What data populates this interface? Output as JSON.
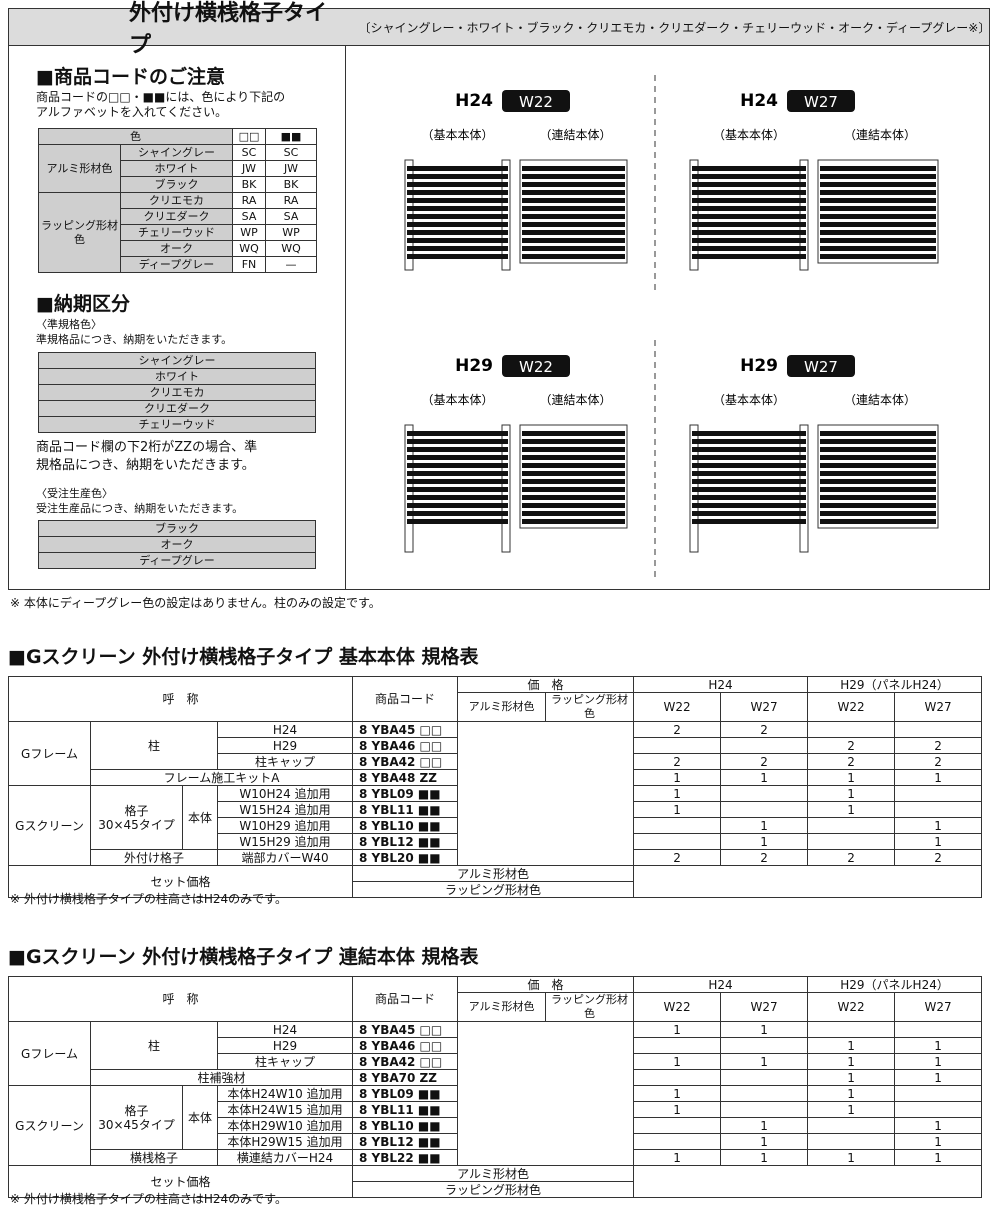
{
  "header": {
    "title": "外付け横桟格子タイプ",
    "subtitle": "〔シャイングレー・ホワイト・ブラック・クリエモカ・クリエダーク・チェリーウッド・オーク・ディープグレー※〕"
  },
  "code_note": {
    "title": "■商品コードのご注意",
    "lines": [
      "商品コードの□□・■■には、色により下記の",
      "アルファベットを入れてください。"
    ],
    "table": {
      "header": [
        "色",
        "□□",
        "■■"
      ],
      "groups": [
        {
          "name": "アルミ形材色",
          "rows": [
            [
              "シャイングレー",
              "SC",
              "SC"
            ],
            [
              "ホワイト",
              "JW",
              "JW"
            ],
            [
              "ブラック",
              "BK",
              "BK"
            ]
          ]
        },
        {
          "name": "ラッピング形材色",
          "rows": [
            [
              "クリエモカ",
              "RA",
              "RA"
            ],
            [
              "クリエダーク",
              "SA",
              "SA"
            ],
            [
              "チェリーウッド",
              "WP",
              "WP"
            ],
            [
              "オーク",
              "WQ",
              "WQ"
            ],
            [
              "ディープグレー",
              "FN",
              "—"
            ]
          ]
        }
      ]
    }
  },
  "delivery": {
    "title": "■納期区分",
    "standard": {
      "label": "〈準規格色〉",
      "text": "準規格品につき、納期をいただきます。",
      "colors": [
        "シャイングレー",
        "ホワイト",
        "クリエモカ",
        "クリエダーク",
        "チェリーウッド"
      ],
      "note": [
        "商品コード欄の下2桁がZZの場合、準",
        "規格品につき、納期をいただきます。"
      ]
    },
    "order": {
      "label": "〈受注生産色〉",
      "text": "受注生産品につき、納期をいただきます。",
      "colors": [
        "ブラック",
        "オーク",
        "ディープグレー"
      ]
    }
  },
  "diagrams": [
    {
      "height": "H24",
      "width": "W22",
      "parts": [
        "（基本本体）",
        "（連結本体）"
      ]
    },
    {
      "height": "H24",
      "width": "W27",
      "parts": [
        "（基本本体）",
        "（連結本体）"
      ]
    },
    {
      "height": "H29",
      "width": "W22",
      "parts": [
        "（基本本体）",
        "（連結本体）"
      ]
    },
    {
      "height": "H29",
      "width": "W27",
      "parts": [
        "（基本本体）",
        "（連結本体）"
      ]
    }
  ],
  "footnote": "※ 本体にディープグレー色の設定はありません。柱のみの設定です。",
  "spec_tables": [
    {
      "title": "■Gスクリーン 外付け横桟格子タイプ 基本本体 規格表",
      "header": {
        "name": "呼　称",
        "code": "商品コード",
        "price": "価　格",
        "price_cols": [
          "アルミ形材色",
          "ラッピング形材色"
        ],
        "groups": [
          "H24",
          "H29（パネルH24）"
        ],
        "widths": [
          "W22",
          "W27",
          "W22",
          "W27"
        ]
      },
      "rows": [
        {
          "names": [
            "Gフレーム",
            "柱",
            "H24"
          ],
          "code": "8 YBA45 □□",
          "qty": [
            2,
            2,
            null,
            null
          ]
        },
        {
          "names": [
            "H29"
          ],
          "code": "8 YBA46 □□",
          "qty": [
            null,
            null,
            2,
            2
          ]
        },
        {
          "names": [
            "柱キャップ"
          ],
          "code": "8 YBA42 □□",
          "qty": [
            2,
            2,
            2,
            2
          ]
        },
        {
          "names": [
            "フレーム施工キットA"
          ],
          "code": "8 YBA48 ZZ",
          "qty": [
            1,
            1,
            1,
            1
          ]
        },
        {
          "names": [
            "Gスクリーン",
            "格子\n30×45タイプ",
            "本体",
            "W10H24 追加用"
          ],
          "code": "8 YBL09 ■■",
          "qty": [
            1,
            null,
            1,
            null
          ]
        },
        {
          "names": [
            "W15H24 追加用"
          ],
          "code": "8 YBL11 ■■",
          "qty": [
            1,
            null,
            1,
            null
          ]
        },
        {
          "names": [
            "W10H29 追加用"
          ],
          "code": "8 YBL10 ■■",
          "qty": [
            null,
            1,
            null,
            1
          ]
        },
        {
          "names": [
            "W15H29 追加用"
          ],
          "code": "8 YBL12 ■■",
          "qty": [
            null,
            1,
            null,
            1
          ]
        },
        {
          "names": [
            "外付け格子",
            "端部カバーW40"
          ],
          "code": "8 YBL20 ■■",
          "qty": [
            2,
            2,
            2,
            2
          ]
        }
      ],
      "set": {
        "label": "セット価格",
        "rows": [
          "アルミ形材色",
          "ラッピング形材色"
        ]
      },
      "note": "※ 外付け横桟格子タイプの柱高さはH24のみです。"
    },
    {
      "title": "■Gスクリーン 外付け横桟格子タイプ 連結本体 規格表",
      "header": {
        "name": "呼　称",
        "code": "商品コード",
        "price": "価　格",
        "price_cols": [
          "アルミ形材色",
          "ラッピング形材色"
        ],
        "groups": [
          "H24",
          "H29（パネルH24）"
        ],
        "widths": [
          "W22",
          "W27",
          "W22",
          "W27"
        ]
      },
      "rows": [
        {
          "names": [
            "Gフレーム",
            "柱",
            "H24"
          ],
          "code": "8 YBA45 □□",
          "qty": [
            1,
            1,
            null,
            null
          ]
        },
        {
          "names": [
            "H29"
          ],
          "code": "8 YBA46 □□",
          "qty": [
            null,
            null,
            1,
            1
          ]
        },
        {
          "names": [
            "柱キャップ"
          ],
          "code": "8 YBA42 □□",
          "qty": [
            1,
            1,
            1,
            1
          ]
        },
        {
          "names": [
            "柱補強材"
          ],
          "code": "8 YBA70 ZZ",
          "qty": [
            null,
            null,
            1,
            1
          ]
        },
        {
          "names": [
            "Gスクリーン",
            "格子\n30×45タイプ",
            "本体",
            "本体H24W10 追加用"
          ],
          "code": "8 YBL09 ■■",
          "qty": [
            1,
            null,
            1,
            null
          ]
        },
        {
          "names": [
            "本体H24W15 追加用"
          ],
          "code": "8 YBL11 ■■",
          "qty": [
            1,
            null,
            1,
            null
          ]
        },
        {
          "names": [
            "本体H29W10 追加用"
          ],
          "code": "8 YBL10 ■■",
          "qty": [
            null,
            1,
            null,
            1
          ]
        },
        {
          "names": [
            "本体H29W15 追加用"
          ],
          "code": "8 YBL12 ■■",
          "qty": [
            null,
            1,
            null,
            1
          ]
        },
        {
          "names": [
            "横桟格子",
            "横連結カバーH24"
          ],
          "code": "8 YBL22 ■■",
          "qty": [
            1,
            1,
            1,
            1
          ]
        }
      ],
      "set": {
        "label": "セット価格",
        "rows": [
          "アルミ形材色",
          "ラッピング形材色"
        ]
      },
      "note": "※ 外付け横桟格子タイプの柱高さはH24のみです。"
    }
  ]
}
